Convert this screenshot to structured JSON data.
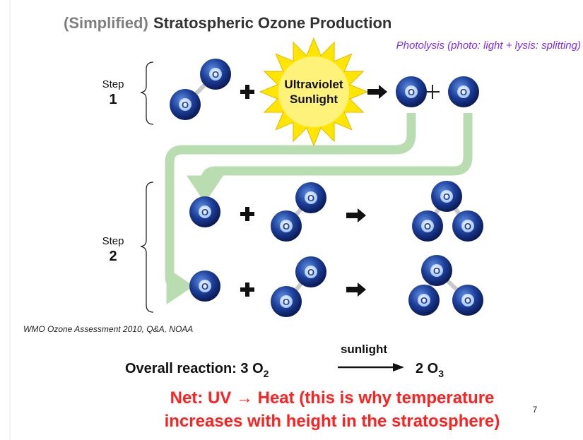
{
  "title_prefix": "(Simplified)",
  "title": "Stratospheric Ozone Production",
  "subtitle": "Photolysis (photo: light + lysis: splitting)",
  "step1": {
    "label": "Step",
    "number": "1"
  },
  "step2": {
    "label": "Step",
    "number": "2"
  },
  "sun": {
    "line1": "Ultraviolet",
    "line2": "Sunlight"
  },
  "atom_label": "O",
  "citation": "WMO Ozone Assessment 2010, Q&A, NOAA",
  "overall": {
    "label": "Overall reaction:",
    "reactant": "3 O",
    "reactant_sub": "2",
    "over_arrow": "sunlight",
    "product": "2 O",
    "product_sub": "3"
  },
  "net": {
    "line1": "Net: UV → Heat (this is why temperature",
    "line2": "increases with height in the stratosphere)"
  },
  "page_number": "7"
}
